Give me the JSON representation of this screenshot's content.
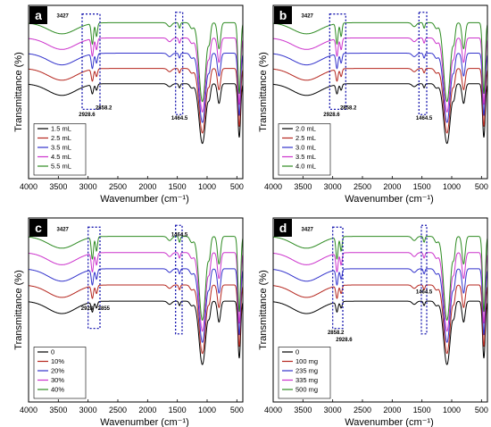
{
  "colors": [
    "#000000",
    "#b5261e",
    "#3333cc",
    "#cc33cc",
    "#2e8b22"
  ],
  "x_ticks": [
    4000,
    3500,
    3000,
    2500,
    2000,
    1500,
    1000,
    500
  ],
  "chart_data": [
    {
      "type": "line",
      "panel_label": "a",
      "xlabel": "Wavenumber (cm⁻¹)",
      "ylabel": "Transmittance (%)",
      "xlim": [
        4000,
        400
      ],
      "x_reversed": true,
      "legend_position": "bottom-left",
      "series": [
        {
          "name": "1.5 mL"
        },
        {
          "name": "2.5 mL"
        },
        {
          "name": "3.5 mL"
        },
        {
          "name": "4.5 mL"
        },
        {
          "name": "5.5 mL"
        }
      ],
      "annotations": [
        {
          "text": "3427",
          "x": 3427
        },
        {
          "text": "2928.6",
          "x": 2928.6
        },
        {
          "text": "2858.2",
          "x": 2858.2
        },
        {
          "text": "1464.5",
          "x": 1464.5
        }
      ],
      "highlight_regions": [
        [
          3100,
          2800
        ],
        [
          1530,
          1410
        ]
      ]
    },
    {
      "type": "line",
      "panel_label": "b",
      "xlabel": "Wavenumber (cm⁻¹)",
      "ylabel": "Transmittance (%)",
      "xlim": [
        4000,
        400
      ],
      "x_reversed": true,
      "legend_position": "bottom-left",
      "series": [
        {
          "name": "2.0 mL"
        },
        {
          "name": "2.5 mL"
        },
        {
          "name": "3.0 mL"
        },
        {
          "name": "3.5 mL"
        },
        {
          "name": "4.0 mL"
        }
      ],
      "annotations": [
        {
          "text": "3427",
          "x": 3427
        },
        {
          "text": "2928.6",
          "x": 2928.6
        },
        {
          "text": "2858.2",
          "x": 2858.2
        },
        {
          "text": "1464.5",
          "x": 1464.5
        }
      ],
      "highlight_regions": [
        [
          3050,
          2780
        ],
        [
          1550,
          1420
        ]
      ]
    },
    {
      "type": "line",
      "panel_label": "c",
      "xlabel": "Wavenumber (cm⁻¹)",
      "ylabel": "Transmittance (%)",
      "xlim": [
        4000,
        400
      ],
      "x_reversed": true,
      "legend_position": "bottom-left",
      "series": [
        {
          "name": "0"
        },
        {
          "name": "10%"
        },
        {
          "name": "20%"
        },
        {
          "name": "30%"
        },
        {
          "name": "40%"
        }
      ],
      "annotations": [
        {
          "text": "3427",
          "x": 3427
        },
        {
          "text": "1464.5",
          "x": 1464.5
        },
        {
          "text": "2928",
          "x": 2928
        },
        {
          "text": "2855",
          "x": 2855
        }
      ],
      "highlight_regions": [
        [
          3000,
          2800
        ],
        [
          1530,
          1420
        ]
      ]
    },
    {
      "type": "line",
      "panel_label": "d",
      "xlabel": "Wavenumber (cm⁻¹)",
      "ylabel": "Transmittance (%)",
      "xlim": [
        4000,
        400
      ],
      "x_reversed": true,
      "legend_position": "bottom-left",
      "series": [
        {
          "name": "0"
        },
        {
          "name": "100 mg"
        },
        {
          "name": "235 mg"
        },
        {
          "name": "335 mg"
        },
        {
          "name": "500 mg"
        }
      ],
      "annotations": [
        {
          "text": "3427",
          "x": 3427
        },
        {
          "text": "1464.5",
          "x": 1464.5
        },
        {
          "text": "2858.2",
          "x": 2858.2
        },
        {
          "text": "2928.6",
          "x": 2928.6
        }
      ],
      "highlight_regions": [
        [
          3000,
          2830
        ],
        [
          1510,
          1420
        ]
      ]
    }
  ]
}
